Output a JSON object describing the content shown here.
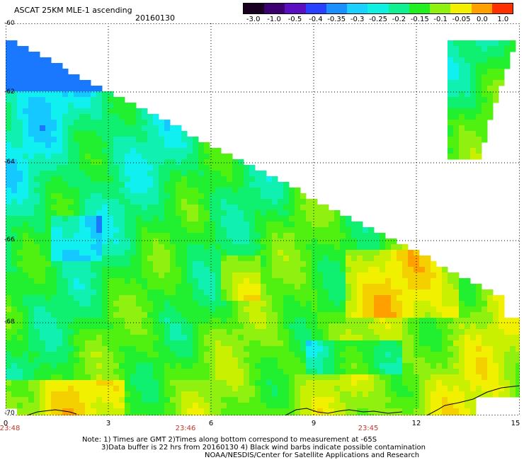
{
  "header": {
    "title": "ASCAT 25KM MLE-1 ascending",
    "date": "20160130"
  },
  "colorbar": {
    "labels": [
      "-3.0",
      "-1.0",
      "-0.5",
      "-0.4",
      "-0.35",
      "-0.3",
      "-0.25",
      "-0.2",
      "-0.15",
      "-0.1",
      "-0.05",
      "0.0",
      "1.0"
    ],
    "colors": [
      "#1a0020",
      "#3a0070",
      "#5a10c0",
      "#2a40ff",
      "#1a90ff",
      "#1ad0ff",
      "#10f0e0",
      "#10f090",
      "#20f020",
      "#90f010",
      "#f0f000",
      "#ffa000",
      "#ff3000"
    ]
  },
  "axes": {
    "lat_labels": [
      "-60",
      "-62",
      "-64",
      "-66",
      "-68",
      "-70"
    ],
    "lon_labels": [
      "0",
      "3",
      "6",
      "9",
      "12",
      "15"
    ],
    "time_labels": [
      "23:48",
      "23:46",
      "23:45"
    ]
  },
  "footer": {
    "note_line1": "Note: 1) Times are GMT 2)Times along bottom correspond to measurement at -65S",
    "note_line2": "3)Data buffer is 22 hrs from 20160130 4) Black wind barbs indicate possible contamination",
    "note_line3": "NOAA/NESDIS/Center for Satellite Applications and Research"
  }
}
